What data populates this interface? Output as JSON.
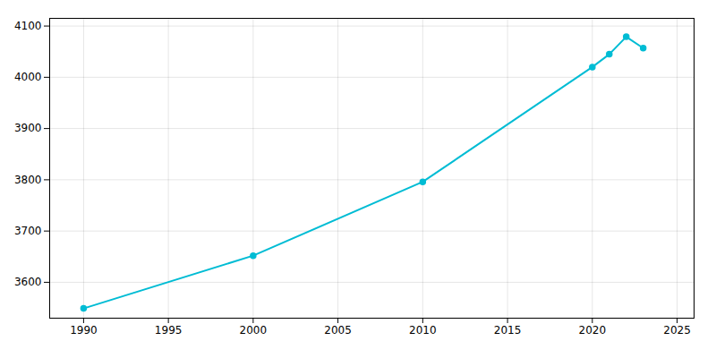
{
  "chart_data": {
    "type": "line",
    "x": [
      1990,
      2000,
      2010,
      2020,
      2021,
      2022,
      2023
    ],
    "values": [
      3549,
      3652,
      3796,
      4020,
      4045,
      4079,
      4057
    ],
    "color": "#00BCD4",
    "marker": "circle",
    "xlim": [
      1988,
      2026
    ],
    "ylim": [
      3530,
      4115
    ],
    "xticks": [
      1990,
      1995,
      2000,
      2005,
      2010,
      2015,
      2020,
      2025
    ],
    "yticks": [
      3600,
      3700,
      3800,
      3900,
      4000,
      4100
    ],
    "grid": true
  }
}
